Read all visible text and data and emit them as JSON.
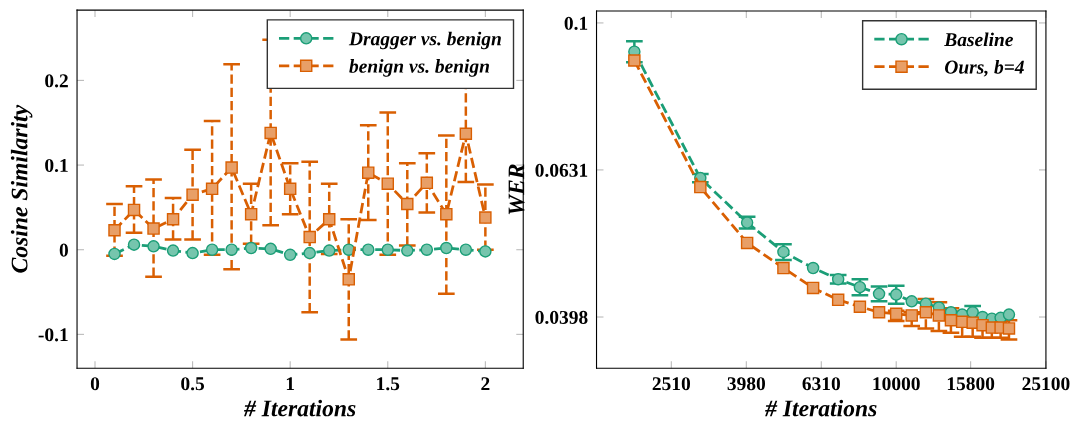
{
  "chart_data": [
    {
      "type": "line",
      "xlabel": "# Iterations",
      "ylabel": "Cosine Similarity",
      "x": [
        0.1,
        0.2,
        0.3,
        0.4,
        0.5,
        0.6,
        0.7,
        0.8,
        0.9,
        1.0,
        1.1,
        1.2,
        1.3,
        1.4,
        1.5,
        1.6,
        1.7,
        1.8,
        1.9,
        2.0
      ],
      "xlim": [
        -0.092,
        2.194
      ],
      "ylim": [
        -0.14,
        0.283
      ],
      "xticks": [
        0,
        0.5,
        1,
        1.5,
        2
      ],
      "yticks": [
        {
          "value": -0.1,
          "label": "-0.1"
        },
        0,
        0.1,
        0.2
      ],
      "grid": false,
      "legend": "top right",
      "line_style": "dashed",
      "series": [
        {
          "name": "Dragger vs. benign",
          "color": "#1b9e77",
          "marker": "circle",
          "values": [
            -0.005,
            0.006,
            0.004,
            -0.001,
            -0.004,
            0.0,
            0.0,
            0.002,
            0.001,
            -0.006,
            -0.004,
            -0.001,
            0.0,
            0.0,
            0.0,
            -0.001,
            0.0,
            0.002,
            0.0,
            -0.002
          ]
        },
        {
          "name": "benign vs. benign",
          "color": "#d95f02",
          "marker": "square",
          "values": [
            0.023,
            0.047,
            0.025,
            0.036,
            0.065,
            0.072,
            0.097,
            0.042,
            0.138,
            0.072,
            0.015,
            0.036,
            -0.035,
            0.091,
            0.078,
            0.054,
            0.079,
            0.042,
            0.137,
            0.038
          ],
          "errors": [
            [
              -0.007,
              0.054
            ],
            [
              0.02,
              0.075
            ],
            [
              -0.032,
              0.083
            ],
            [
              0.012,
              0.061
            ],
            [
              0.012,
              0.118
            ],
            [
              -0.006,
              0.152
            ],
            [
              -0.023,
              0.219
            ],
            [
              0.007,
              0.078
            ],
            [
              0.029,
              0.248
            ],
            [
              0.042,
              0.102
            ],
            [
              -0.074,
              0.104
            ],
            [
              -0.005,
              0.078
            ],
            [
              -0.106,
              0.036
            ],
            [
              0.035,
              0.147
            ],
            [
              -0.006,
              0.162
            ],
            [
              0.005,
              0.102
            ],
            [
              0.044,
              0.114
            ],
            [
              -0.052,
              0.135
            ],
            [
              0.08,
              0.195
            ],
            [
              0.0,
              0.077
            ]
          ]
        }
      ]
    },
    {
      "type": "line",
      "xlabel": "# Iterations",
      "ylabel": "WER",
      "log": "xy",
      "x": [
        2000,
        3000,
        4000,
        5000,
        6000,
        7000,
        8000,
        9000,
        10000,
        11000,
        12000,
        13000,
        14000,
        15000,
        16000,
        17000,
        18000,
        19000,
        20000
      ],
      "xlim": [
        1585,
        25100
      ],
      "ylim": [
        0.0339,
        0.1038
      ],
      "xticks": [
        2510,
        3980,
        6310,
        10000,
        15800,
        25100
      ],
      "yticks": [
        0.1,
        {
          "value": 0.0631,
          "label": "0.0631"
        },
        {
          "value": 0.0398,
          "label": "0.0398"
        }
      ],
      "grid": false,
      "legend": "top right",
      "line_style": "dashed",
      "series": [
        {
          "name": "Baseline",
          "color": "#1b9e77",
          "marker": "circle",
          "values": [
            0.0914,
            0.0615,
            0.0535,
            0.0488,
            0.0464,
            0.0448,
            0.0437,
            0.0428,
            0.0427,
            0.0418,
            0.0415,
            0.041,
            0.0404,
            0.0401,
            0.0404,
            0.0398,
            0.0396,
            0.0397,
            0.0401
          ],
          "errors": [
            0.003,
            0.0008,
            0.001,
            0.0012,
            null,
            0.0006,
            0.0011,
            0.001,
            0.0012,
            null,
            null,
            null,
            null,
            null,
            0.0008,
            null,
            null,
            null,
            null
          ]
        },
        {
          "name": "Ours, b=4",
          "color": "#d95f02",
          "marker": "square",
          "values": [
            0.0889,
            0.0598,
            0.0502,
            0.0464,
            0.0436,
            0.042,
            0.0411,
            0.0404,
            0.0402,
            0.04,
            0.0404,
            0.04,
            0.0394,
            0.0392,
            0.0391,
            0.0388,
            0.0385,
            0.0385,
            0.0384
          ],
          "errors": [
            null,
            null,
            null,
            null,
            null,
            null,
            null,
            null,
            [
              0.0393,
              0.0406
            ],
            [
              0.0387,
              0.0404
            ],
            [
              0.0384,
              0.0421
            ],
            [
              0.0381,
              0.0417
            ],
            [
              0.0379,
              0.0409
            ],
            [
              0.0374,
              0.0405
            ],
            [
              0.0374,
              0.04
            ],
            [
              0.0373,
              0.0398
            ],
            [
              0.0373,
              0.0394
            ],
            [
              0.0373,
              0.0393
            ],
            [
              0.0371,
              0.0394
            ]
          ]
        }
      ]
    }
  ]
}
